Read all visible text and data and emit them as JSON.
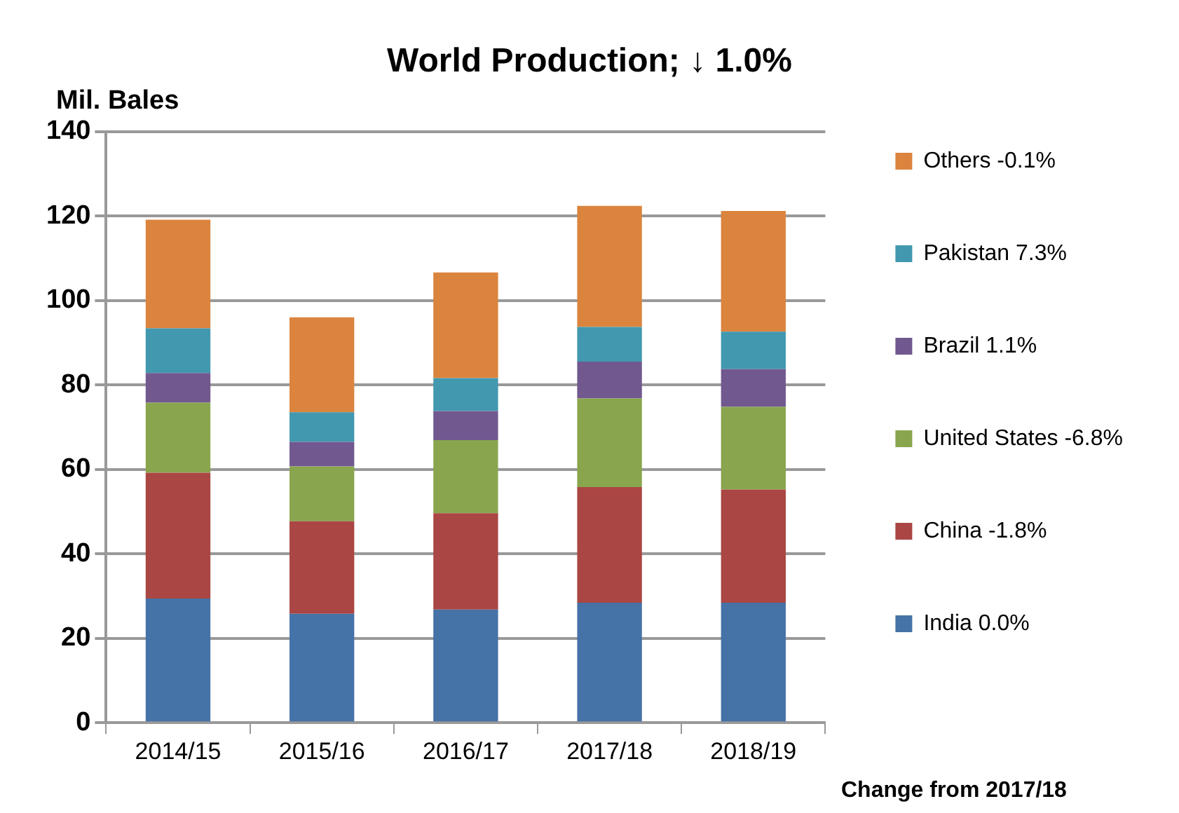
{
  "chart_data": {
    "type": "bar",
    "title": "World Production; ↓ 1.0%",
    "ylabel": "Mil. Bales",
    "categories": [
      "2014/15",
      "2015/16",
      "2016/17",
      "2017/18",
      "2018/19"
    ],
    "stacked": true,
    "series": [
      {
        "name": "India 0.0%",
        "color": "#4572a7",
        "values": [
          29.4,
          25.8,
          26.8,
          28.4,
          28.4
        ]
      },
      {
        "name": "China -1.8%",
        "color": "#aa4643",
        "values": [
          29.8,
          21.9,
          22.8,
          27.4,
          26.8
        ]
      },
      {
        "name": "United States -6.8%",
        "color": "#89a54e",
        "values": [
          16.6,
          13.0,
          17.3,
          21.0,
          19.6
        ]
      },
      {
        "name": "Brazil 1.1%",
        "color": "#71588f",
        "values": [
          7.0,
          5.8,
          6.9,
          8.7,
          8.9
        ]
      },
      {
        "name": "Pakistan 7.3%",
        "color": "#4198af",
        "values": [
          10.6,
          7.0,
          7.8,
          8.2,
          8.9
        ]
      },
      {
        "name": "Others -0.1%",
        "color": "#db843d",
        "values": [
          25.7,
          22.5,
          25.0,
          28.7,
          28.6
        ]
      }
    ],
    "ylim": [
      0,
      140
    ],
    "yticks": [
      0,
      20,
      40,
      60,
      80,
      100,
      120,
      140
    ],
    "grid": "y",
    "legend": "right",
    "annotations": [
      "Change from 2017/18"
    ]
  }
}
